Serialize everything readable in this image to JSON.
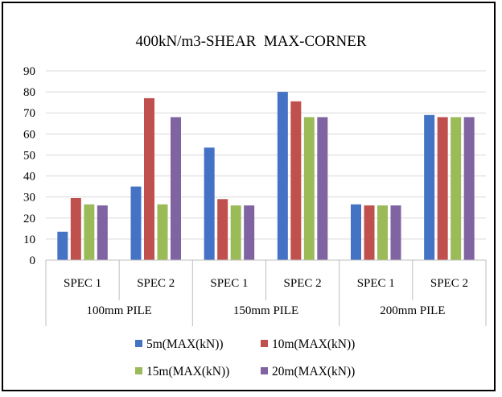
{
  "chart_data": {
    "type": "bar",
    "title": "400kN/m3-SHEAR  MAX-CORNER",
    "groups": [
      {
        "label": "100mm PILE",
        "categories": [
          "SPEC 1",
          "SPEC 2"
        ]
      },
      {
        "label": "150mm PILE",
        "categories": [
          "SPEC 1",
          "SPEC 2"
        ]
      },
      {
        "label": "200mm PILE",
        "categories": [
          "SPEC 1",
          "SPEC 2"
        ]
      }
    ],
    "categories": [
      "SPEC 1",
      "SPEC 2",
      "SPEC 1",
      "SPEC 2",
      "SPEC 1",
      "SPEC 2"
    ],
    "series": [
      {
        "name": "5m(MAX(kN))",
        "color": "#4472C4",
        "values": [
          13.5,
          35,
          53.5,
          80,
          26.5,
          69
        ]
      },
      {
        "name": "10m(MAX(kN))",
        "color": "#C0504D",
        "values": [
          29.5,
          77,
          29,
          75.5,
          26,
          68
        ]
      },
      {
        "name": "15m(MAX(kN))",
        "color": "#9BBB59",
        "values": [
          26.5,
          26.5,
          26,
          68,
          26,
          68
        ]
      },
      {
        "name": "20m(MAX(kN))",
        "color": "#8064A2",
        "values": [
          26,
          68,
          26,
          68,
          26,
          68
        ]
      }
    ],
    "ylim": [
      0,
      90
    ],
    "yticks": [
      0,
      10,
      20,
      30,
      40,
      50,
      60,
      70,
      80,
      90
    ],
    "grid": true,
    "legend_position": "bottom"
  }
}
